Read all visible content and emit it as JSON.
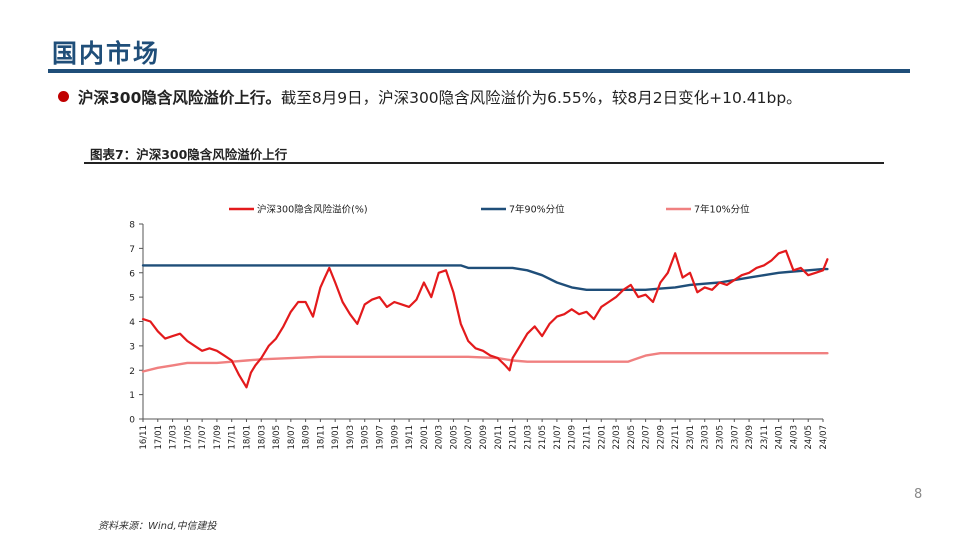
{
  "header": {
    "title": "国内市场"
  },
  "bullet": {
    "headline": "沪深300隐含风险溢价上行。",
    "detail": "截至8月9日，沪深300隐含风险溢价为6.55%，较8月2日变化+10.41bp。"
  },
  "figure": {
    "title": "图表7：沪深300隐含风险溢价上行",
    "source": "资料来源：Wind,中信建投"
  },
  "page_number": "8",
  "colors": {
    "accent": "#1f4e79",
    "series1": "#e31a1c",
    "series2": "#1f4e79",
    "series3": "#f08080"
  },
  "chart_data": {
    "type": "line",
    "title": "",
    "xlabel": "",
    "ylabel": "",
    "ylim": [
      0,
      8
    ],
    "yticks": [
      "0",
      "1",
      "2",
      "3",
      "4",
      "5",
      "6",
      "7",
      "8"
    ],
    "xticks": [
      "16/11",
      "17/01",
      "17/03",
      "17/05",
      "17/07",
      "17/09",
      "17/11",
      "18/01",
      "18/03",
      "18/05",
      "18/07",
      "18/09",
      "18/11",
      "19/01",
      "19/03",
      "19/05",
      "19/07",
      "19/09",
      "19/11",
      "20/01",
      "20/03",
      "20/05",
      "20/07",
      "20/09",
      "20/11",
      "21/01",
      "21/03",
      "21/05",
      "21/07",
      "21/09",
      "21/11",
      "22/01",
      "22/03",
      "22/05",
      "22/07",
      "22/09",
      "22/11",
      "23/01",
      "23/03",
      "23/05",
      "23/07",
      "23/09",
      "23/11",
      "24/01",
      "24/03",
      "24/05",
      "24/07"
    ],
    "grid": false,
    "legend_position": "top",
    "series": [
      {
        "name": "沪深300隐含风险溢价(%)",
        "color": "#e31a1c",
        "x": [
          0,
          0.5,
          1,
          1.5,
          2,
          2.5,
          3,
          3.5,
          4,
          4.5,
          5,
          5.5,
          6,
          6.5,
          7,
          7.3,
          7.6,
          8,
          8.5,
          9,
          9.5,
          10,
          10.5,
          11,
          11.5,
          12,
          12.3,
          12.6,
          13,
          13.5,
          14,
          14.5,
          15,
          15.5,
          16,
          16.5,
          17,
          17.5,
          18,
          18.5,
          19,
          19.5,
          20,
          20.5,
          21,
          21.5,
          22,
          22.5,
          23,
          23.5,
          24,
          24.5,
          24.8,
          25,
          25.5,
          26,
          26.5,
          27,
          27.5,
          28,
          28.5,
          29,
          29.5,
          30,
          30.5,
          31,
          31.5,
          32,
          32.5,
          33,
          33.5,
          34,
          34.5,
          35,
          35.5,
          36,
          36.5,
          37,
          37.5,
          38,
          38.5,
          39,
          39.5,
          40,
          40.5,
          41,
          41.5,
          42,
          42.5,
          43,
          43.5,
          44,
          44.5,
          45,
          45.5,
          46,
          46.3
        ],
        "y": [
          4.1,
          4.0,
          3.6,
          3.3,
          3.4,
          3.5,
          3.2,
          3.0,
          2.8,
          2.9,
          2.8,
          2.6,
          2.4,
          1.8,
          1.3,
          1.9,
          2.2,
          2.5,
          3.0,
          3.3,
          3.8,
          4.4,
          4.8,
          4.8,
          4.2,
          5.4,
          5.8,
          6.2,
          5.6,
          4.8,
          4.3,
          3.9,
          4.7,
          4.9,
          5.0,
          4.6,
          4.8,
          4.7,
          4.6,
          4.9,
          5.6,
          5.0,
          6.0,
          6.1,
          5.2,
          3.9,
          3.2,
          2.9,
          2.8,
          2.6,
          2.5,
          2.2,
          2.0,
          2.5,
          3.0,
          3.5,
          3.8,
          3.4,
          3.9,
          4.2,
          4.3,
          4.5,
          4.3,
          4.4,
          4.1,
          4.6,
          4.8,
          5.0,
          5.3,
          5.5,
          5.0,
          5.1,
          4.8,
          5.6,
          6.0,
          6.8,
          5.8,
          6.0,
          5.2,
          5.4,
          5.3,
          5.6,
          5.5,
          5.7,
          5.9,
          6.0,
          6.2,
          6.3,
          6.5,
          6.8,
          6.9,
          6.1,
          6.2,
          5.9,
          6.0,
          6.1,
          6.55
        ]
      },
      {
        "name": "7年90%分位",
        "color": "#1f4e79",
        "x": [
          0,
          21,
          21.5,
          22,
          23,
          24,
          25,
          26,
          27,
          28,
          29,
          30,
          31,
          32,
          33,
          34,
          35,
          36,
          37,
          38,
          39,
          40,
          41,
          42,
          43,
          44,
          45,
          46,
          46.3
        ],
        "y": [
          6.3,
          6.3,
          6.3,
          6.2,
          6.2,
          6.2,
          6.2,
          6.1,
          5.9,
          5.6,
          5.4,
          5.3,
          5.3,
          5.3,
          5.3,
          5.3,
          5.35,
          5.4,
          5.5,
          5.55,
          5.6,
          5.7,
          5.8,
          5.9,
          6.0,
          6.05,
          6.1,
          6.15,
          6.15
        ]
      },
      {
        "name": "7年10%分位",
        "color": "#f08080",
        "x": [
          0,
          1,
          2,
          3,
          4,
          5,
          6,
          7,
          8,
          10,
          12,
          14,
          16,
          18,
          20,
          22,
          24,
          25,
          26,
          28,
          30,
          32,
          32.8,
          33.5,
          34,
          35,
          37,
          40,
          44,
          46.3
        ],
        "y": [
          1.95,
          2.1,
          2.2,
          2.3,
          2.3,
          2.3,
          2.35,
          2.4,
          2.45,
          2.5,
          2.55,
          2.55,
          2.55,
          2.55,
          2.55,
          2.55,
          2.5,
          2.4,
          2.35,
          2.35,
          2.35,
          2.35,
          2.35,
          2.5,
          2.6,
          2.7,
          2.7,
          2.7,
          2.7,
          2.7
        ]
      }
    ]
  }
}
